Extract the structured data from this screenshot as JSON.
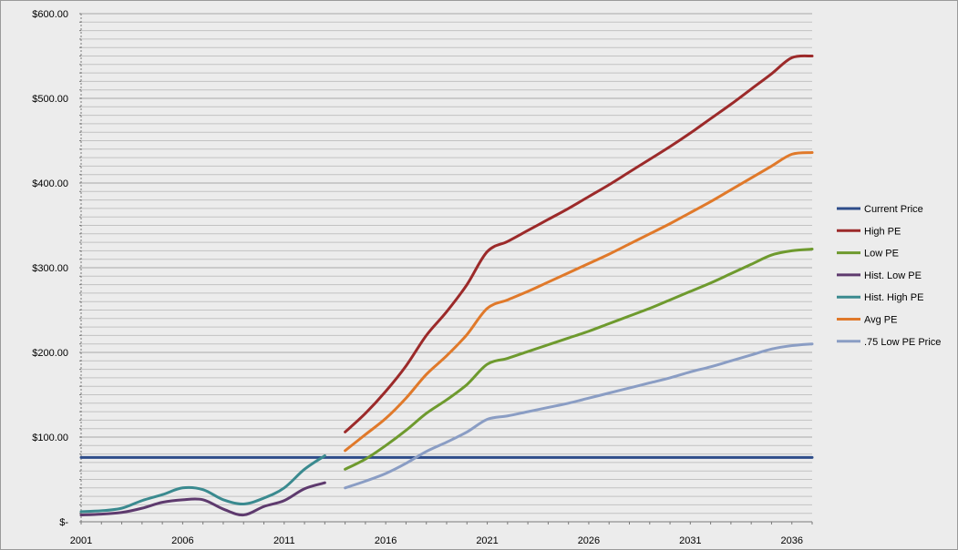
{
  "chart_data": {
    "type": "line",
    "title": "",
    "xlabel": "",
    "ylabel": "",
    "xlim": [
      2001,
      2037
    ],
    "ylim": [
      0,
      600
    ],
    "x_ticks": [
      2001,
      2006,
      2011,
      2016,
      2021,
      2026,
      2031,
      2036
    ],
    "x_tick_labels": [
      "2001",
      "2006",
      "2011",
      "2016",
      "2021",
      "2026",
      "2031",
      "2036"
    ],
    "y_ticks": [
      0,
      100,
      200,
      300,
      400,
      500,
      600
    ],
    "y_tick_labels": [
      "$-",
      "$100.00",
      "$200.00",
      "$300.00",
      "$400.00",
      "$500.00",
      "$600.00"
    ],
    "grid": true,
    "legend": "right",
    "series": [
      {
        "name": "Current Price",
        "color": "#2e4d8a",
        "points": [
          [
            2001,
            76
          ],
          [
            2037,
            76
          ]
        ]
      },
      {
        "name": "High PE",
        "color": "#9c2a2a",
        "points": [
          [
            2014,
            106
          ],
          [
            2015,
            128
          ],
          [
            2016,
            154
          ],
          [
            2017,
            184
          ],
          [
            2018,
            220
          ],
          [
            2019,
            248
          ],
          [
            2020,
            280
          ],
          [
            2021,
            319
          ],
          [
            2022,
            331
          ],
          [
            2023,
            344
          ],
          [
            2024,
            357
          ],
          [
            2025,
            370
          ],
          [
            2026,
            384
          ],
          [
            2027,
            398
          ],
          [
            2028,
            413
          ],
          [
            2029,
            428
          ],
          [
            2030,
            443
          ],
          [
            2031,
            459
          ],
          [
            2032,
            476
          ],
          [
            2033,
            493
          ],
          [
            2034,
            511
          ],
          [
            2035,
            529
          ],
          [
            2036,
            548
          ],
          [
            2037,
            550
          ]
        ]
      },
      {
        "name": "Low PE",
        "color": "#6e9a2e",
        "points": [
          [
            2014,
            62
          ],
          [
            2015,
            74
          ],
          [
            2016,
            90
          ],
          [
            2017,
            108
          ],
          [
            2018,
            128
          ],
          [
            2019,
            144
          ],
          [
            2020,
            162
          ],
          [
            2021,
            186
          ],
          [
            2022,
            193
          ],
          [
            2023,
            201
          ],
          [
            2024,
            209
          ],
          [
            2025,
            217
          ],
          [
            2026,
            225
          ],
          [
            2027,
            234
          ],
          [
            2028,
            243
          ],
          [
            2029,
            252
          ],
          [
            2030,
            262
          ],
          [
            2031,
            272
          ],
          [
            2032,
            282
          ],
          [
            2033,
            293
          ],
          [
            2034,
            304
          ],
          [
            2035,
            315
          ],
          [
            2036,
            320
          ],
          [
            2037,
            322
          ]
        ]
      },
      {
        "name": "Hist. Low PE",
        "color": "#5e3a6e",
        "points": [
          [
            2001,
            8
          ],
          [
            2002,
            9
          ],
          [
            2003,
            11
          ],
          [
            2004,
            16
          ],
          [
            2005,
            23
          ],
          [
            2006,
            26
          ],
          [
            2007,
            26
          ],
          [
            2008,
            15
          ],
          [
            2009,
            8
          ],
          [
            2010,
            18
          ],
          [
            2011,
            25
          ],
          [
            2012,
            39
          ],
          [
            2013,
            46
          ]
        ]
      },
      {
        "name": "Hist. High PE",
        "color": "#3a8a8f",
        "points": [
          [
            2001,
            12
          ],
          [
            2002,
            13
          ],
          [
            2003,
            16
          ],
          [
            2004,
            25
          ],
          [
            2005,
            32
          ],
          [
            2006,
            40
          ],
          [
            2007,
            38
          ],
          [
            2008,
            26
          ],
          [
            2009,
            21
          ],
          [
            2010,
            28
          ],
          [
            2011,
            40
          ],
          [
            2012,
            62
          ],
          [
            2013,
            78
          ]
        ]
      },
      {
        "name": "Avg PE",
        "color": "#e0792a",
        "points": [
          [
            2014,
            84
          ],
          [
            2015,
            103
          ],
          [
            2016,
            122
          ],
          [
            2017,
            146
          ],
          [
            2018,
            174
          ],
          [
            2019,
            196
          ],
          [
            2020,
            221
          ],
          [
            2021,
            252
          ],
          [
            2022,
            262
          ],
          [
            2023,
            272
          ],
          [
            2024,
            283
          ],
          [
            2025,
            294
          ],
          [
            2026,
            305
          ],
          [
            2027,
            316
          ],
          [
            2028,
            328
          ],
          [
            2029,
            340
          ],
          [
            2030,
            352
          ],
          [
            2031,
            365
          ],
          [
            2032,
            378
          ],
          [
            2033,
            392
          ],
          [
            2034,
            406
          ],
          [
            2035,
            420
          ],
          [
            2036,
            434
          ],
          [
            2037,
            436
          ]
        ]
      },
      {
        "name": ".75 Low PE Price",
        "color": "#8a9dc4",
        "points": [
          [
            2014,
            40
          ],
          [
            2015,
            48
          ],
          [
            2016,
            57
          ],
          [
            2017,
            69
          ],
          [
            2018,
            83
          ],
          [
            2019,
            94
          ],
          [
            2020,
            106
          ],
          [
            2021,
            121
          ],
          [
            2022,
            125
          ],
          [
            2023,
            130
          ],
          [
            2024,
            135
          ],
          [
            2025,
            140
          ],
          [
            2026,
            146
          ],
          [
            2027,
            152
          ],
          [
            2028,
            158
          ],
          [
            2029,
            164
          ],
          [
            2030,
            170
          ],
          [
            2031,
            177
          ],
          [
            2032,
            183
          ],
          [
            2033,
            190
          ],
          [
            2034,
            197
          ],
          [
            2035,
            204
          ],
          [
            2036,
            208
          ],
          [
            2037,
            210
          ]
        ]
      }
    ]
  }
}
